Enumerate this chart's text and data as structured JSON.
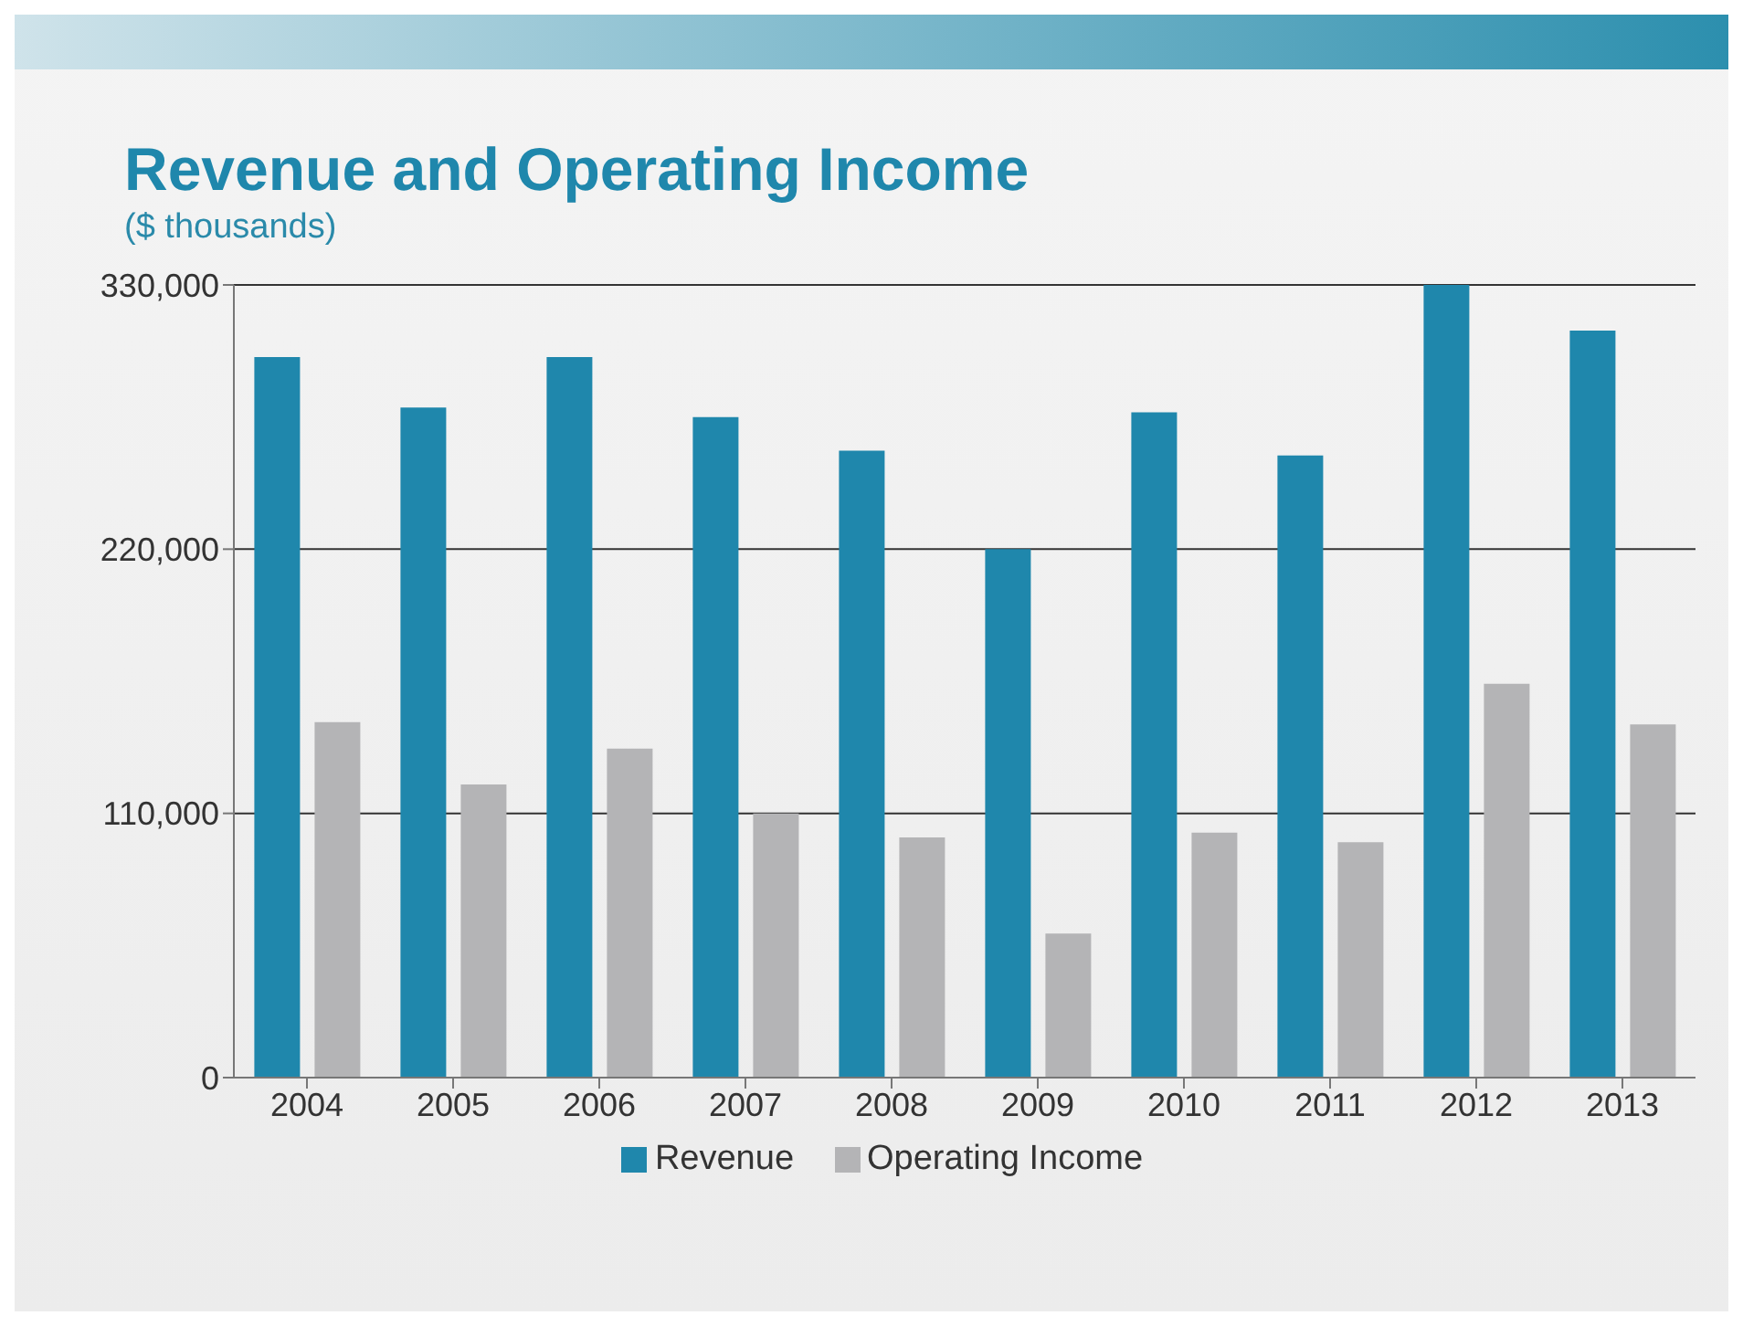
{
  "chart_data": {
    "type": "bar",
    "title": "Revenue and Operating Income",
    "subtitle": "($ thousands)",
    "categories": [
      "2004",
      "2005",
      "2006",
      "2007",
      "2008",
      "2009",
      "2010",
      "2011",
      "2012",
      "2013"
    ],
    "series": [
      {
        "name": "Revenue",
        "color": "#1f87ac",
        "values": [
          300000,
          279000,
          300000,
          275000,
          261000,
          220000,
          277000,
          259000,
          330000,
          311000
        ]
      },
      {
        "name": "Operating Income",
        "color": "#b4b4b6",
        "values": [
          148000,
          122000,
          137000,
          110000,
          100000,
          60000,
          102000,
          98000,
          164000,
          147000
        ]
      }
    ],
    "ylim": [
      0,
      330000
    ],
    "yticks": [
      {
        "value": 0,
        "label": "0"
      },
      {
        "value": 110000,
        "label": "110,000"
      },
      {
        "value": 220000,
        "label": "220,000"
      },
      {
        "value": 330000,
        "label": "330,000"
      }
    ],
    "grid": "y",
    "legend": "bottom"
  }
}
